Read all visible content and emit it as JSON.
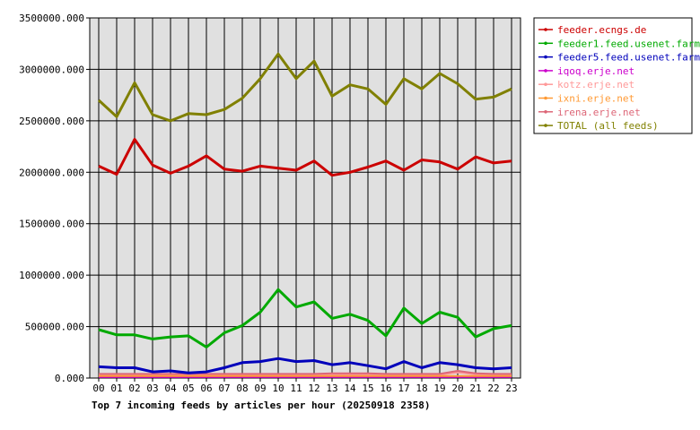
{
  "chart_data": {
    "type": "line",
    "title": "Top 7 incoming feeds by articles per hour (20250918 2358)",
    "categories": [
      "00",
      "01",
      "02",
      "03",
      "04",
      "05",
      "06",
      "07",
      "08",
      "09",
      "10",
      "11",
      "12",
      "13",
      "14",
      "15",
      "16",
      "17",
      "18",
      "19",
      "20",
      "21",
      "22",
      "23"
    ],
    "ylim": [
      0,
      3500000
    ],
    "yticks": [
      "0.000",
      "500000.000",
      "1000000.000",
      "1500000.000",
      "2000000.000",
      "2500000.000",
      "3000000.000",
      "3500000.000"
    ],
    "ytick_values": [
      0,
      500000,
      1000000,
      1500000,
      2000000,
      2500000,
      3000000,
      3500000
    ],
    "grid": true,
    "plot_background": "#e0e0e0",
    "legend_position": "top-right",
    "series": [
      {
        "name": "feeder.ecngs.de",
        "color": "#cc0000",
        "weight": "heavy",
        "values": [
          2060000,
          1980000,
          2320000,
          2070000,
          1990000,
          2060000,
          2160000,
          2030000,
          2010000,
          2060000,
          2040000,
          2020000,
          2110000,
          1970000,
          2000000,
          2050000,
          2110000,
          2020000,
          2120000,
          2100000,
          2030000,
          2150000,
          2090000,
          2110000
        ]
      },
      {
        "name": "feeder1.feed.usenet.farm",
        "color": "#00aa00",
        "weight": "heavy",
        "values": [
          470000,
          420000,
          420000,
          380000,
          400000,
          410000,
          300000,
          440000,
          510000,
          640000,
          860000,
          690000,
          740000,
          580000,
          620000,
          560000,
          410000,
          680000,
          530000,
          640000,
          590000,
          400000,
          480000,
          510000
        ]
      },
      {
        "name": "feeder5.feed.usenet.farm",
        "color": "#0000bb",
        "weight": "heavy",
        "values": [
          110000,
          100000,
          100000,
          60000,
          70000,
          50000,
          60000,
          100000,
          150000,
          160000,
          190000,
          160000,
          170000,
          130000,
          150000,
          120000,
          90000,
          160000,
          100000,
          150000,
          130000,
          100000,
          90000,
          100000
        ]
      },
      {
        "name": "iqoq.erje.net",
        "color": "#cc00cc",
        "weight": "light",
        "values": [
          10000,
          10000,
          10000,
          10000,
          10000,
          10000,
          10000,
          10000,
          10000,
          10000,
          10000,
          10000,
          10000,
          10000,
          10000,
          10000,
          10000,
          10000,
          10000,
          10000,
          10000,
          10000,
          10000,
          10000
        ]
      },
      {
        "name": "kotz.erje.net",
        "color": "#ff9999",
        "weight": "light",
        "values": [
          30000,
          30000,
          30000,
          30000,
          30000,
          30000,
          30000,
          30000,
          30000,
          30000,
          30000,
          30000,
          30000,
          35000,
          35000,
          35000,
          30000,
          30000,
          30000,
          30000,
          55000,
          35000,
          30000,
          30000
        ]
      },
      {
        "name": "ixni.erje.net",
        "color": "#ff9933",
        "weight": "light",
        "values": [
          20000,
          20000,
          20000,
          20000,
          20000,
          20000,
          20000,
          20000,
          20000,
          20000,
          20000,
          20000,
          20000,
          20000,
          20000,
          20000,
          20000,
          20000,
          20000,
          20000,
          20000,
          20000,
          20000,
          20000
        ]
      },
      {
        "name": "irena.erje.net",
        "color": "#dd6677",
        "weight": "light",
        "values": [
          40000,
          40000,
          40000,
          40000,
          40000,
          40000,
          40000,
          40000,
          40000,
          40000,
          40000,
          40000,
          40000,
          45000,
          45000,
          45000,
          40000,
          40000,
          40000,
          40000,
          70000,
          45000,
          40000,
          40000
        ]
      },
      {
        "name": "TOTAL (all feeds)",
        "color": "#808000",
        "weight": "heavy",
        "values": [
          2700000,
          2540000,
          2870000,
          2560000,
          2500000,
          2570000,
          2560000,
          2610000,
          2720000,
          2910000,
          3150000,
          2910000,
          3080000,
          2740000,
          2850000,
          2810000,
          2660000,
          2910000,
          2810000,
          2960000,
          2860000,
          2710000,
          2730000,
          2810000
        ]
      }
    ]
  }
}
